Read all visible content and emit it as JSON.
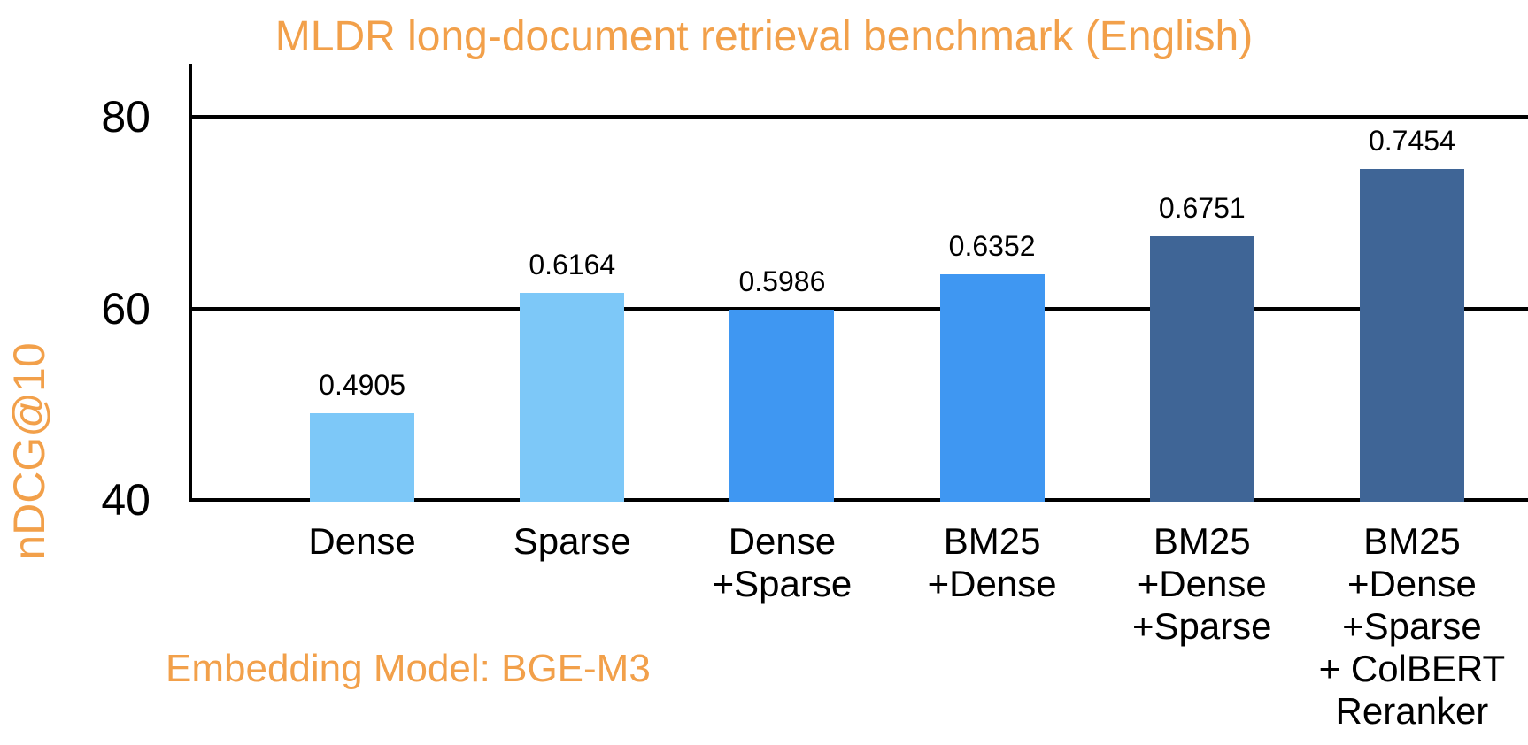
{
  "chart_data": {
    "type": "bar",
    "title": "MLDR long-document retrieval benchmark (English)",
    "ylabel": "nDCG@10",
    "annotation": "Embedding Model: BGE-M3",
    "categories": [
      "Dense",
      "Sparse",
      "Dense\n+Sparse",
      "BM25\n+Dense",
      "BM25\n+Dense\n+Sparse",
      "BM25\n+Dense\n+Sparse\n+ ColBERT\nReranker"
    ],
    "values": [
      0.4905,
      0.6164,
      0.5986,
      0.6352,
      0.6751,
      0.7454
    ],
    "value_labels": [
      "0.4905",
      "0.6164",
      "0.5986",
      "0.6352",
      "0.6751",
      "0.7454"
    ],
    "bar_colors": [
      "#7DC8F8",
      "#7DC8F8",
      "#3F97F2",
      "#3F97F2",
      "#3F6596",
      "#3F6596"
    ],
    "yticks": [
      40,
      60,
      80
    ],
    "ylim": [
      40,
      85.5
    ],
    "value_scale": 100,
    "grid": true,
    "legend": "none",
    "colors": {
      "accent_orange": "#F2A04A",
      "bar_light_blue": "#7DC8F8",
      "bar_medium_blue": "#3F97F2",
      "bar_dark_blue": "#3F6596",
      "axis_black": "#000000",
      "background": "#FFFFFF"
    }
  }
}
